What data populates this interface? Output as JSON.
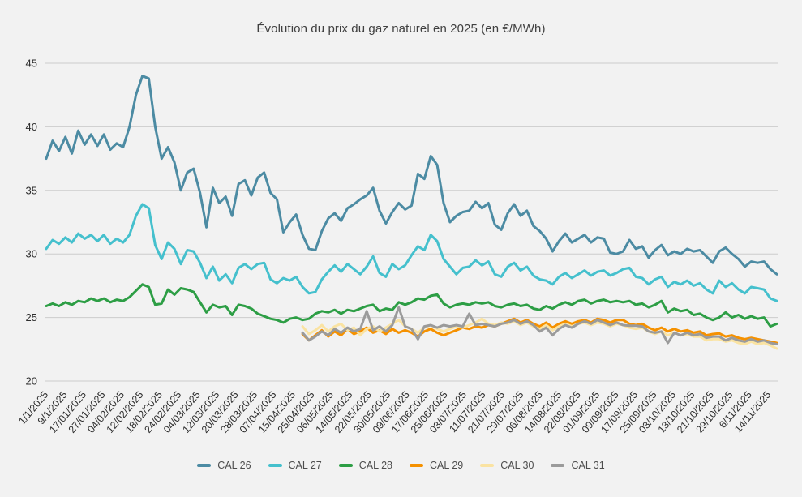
{
  "title": "Évolution du prix du gaz naturel en 2025 (en €/MWh)",
  "colors": {
    "background": "#f2f2f2",
    "grid": "#cccccc",
    "axis_text": "#2e2e2e",
    "title_text": "#404040",
    "cal26": "#4c8ba3",
    "cal27": "#45c0cd",
    "cal28": "#2d9e45",
    "cal29": "#f59100",
    "cal30": "#fae3a2",
    "cal31": "#9b9b9b"
  },
  "chart_data": {
    "type": "line",
    "title": "Évolution du prix du gaz naturel en 2025 (en €/MWh)",
    "xlabel": "",
    "ylabel": "",
    "ylim": [
      20,
      45
    ],
    "y_ticks": [
      20,
      25,
      30,
      35,
      40,
      45
    ],
    "grid": "horizontal",
    "legend_position": "bottom",
    "x_tick_labels": [
      "1/1/2025",
      "9/1/2025",
      "17/01/2025",
      "27/01/2025",
      "04/02/2025",
      "12/02/2025",
      "18/02/2025",
      "24/02/2025",
      "04/03/2025",
      "12/03/2025",
      "20/03/2025",
      "28/03/2025",
      "07/04/2025",
      "15/04/2025",
      "25/04/2025",
      "06/05/2025",
      "14/05/2025",
      "22/05/2025",
      "30/05/2025",
      "09/06/2025",
      "17/06/2025",
      "25/06/2025",
      "03/07/2025",
      "11/07/2025",
      "21/07/2025",
      "29/07/2025",
      "06/08/2025",
      "14/08/2025",
      "22/08/2025",
      "01/09/2025",
      "09/09/2025",
      "17/09/2025",
      "25/09/2025",
      "03/10/2025",
      "13/10/2025",
      "21/10/2025",
      "29/10/2025",
      "6/11/2025",
      "14/11/2025"
    ],
    "series": [
      {
        "name": "CAL 26",
        "color": "#4c8ba3",
        "values": [
          37.5,
          38.9,
          38.1,
          39.2,
          37.9,
          39.7,
          38.6,
          39.4,
          38.5,
          39.4,
          38.2,
          38.7,
          38.4,
          40.0,
          42.5,
          44.0,
          43.8,
          40.0,
          37.5,
          38.4,
          37.2,
          35.0,
          36.4,
          36.7,
          34.8,
          32.1,
          35.2,
          34.0,
          34.5,
          33.0,
          35.5,
          35.8,
          34.6,
          36.0,
          36.4,
          34.8,
          34.3,
          31.7,
          32.5,
          33.1,
          31.5,
          30.4,
          30.3,
          31.8,
          32.8,
          33.2,
          32.6,
          33.6,
          33.9,
          34.3,
          34.6,
          35.2,
          33.4,
          32.4,
          33.3,
          34.0,
          33.5,
          33.8,
          36.3,
          35.9,
          37.7,
          37.0,
          34.0,
          32.5,
          33.0,
          33.3,
          33.4,
          34.1,
          33.6,
          34.0,
          32.3,
          31.9,
          33.2,
          33.9,
          33.0,
          33.4,
          32.2,
          31.8,
          31.2,
          30.2,
          31.0,
          31.6,
          30.9,
          31.2,
          31.5,
          30.9,
          31.3,
          31.2,
          30.1,
          30.0,
          30.2,
          31.1,
          30.4,
          30.6,
          29.7,
          30.3,
          30.7,
          29.9,
          30.2,
          30.0,
          30.4,
          30.2,
          30.3,
          29.8,
          29.3,
          30.2,
          30.5,
          30.0,
          29.6,
          29.0,
          29.4,
          29.3,
          29.4,
          28.8,
          28.4
        ]
      },
      {
        "name": "CAL 27",
        "color": "#45c0cd",
        "values": [
          30.4,
          31.1,
          30.8,
          31.3,
          30.9,
          31.6,
          31.2,
          31.5,
          31.0,
          31.5,
          30.8,
          31.2,
          30.9,
          31.5,
          33.0,
          33.9,
          33.6,
          30.7,
          29.6,
          30.9,
          30.4,
          29.2,
          30.3,
          30.2,
          29.3,
          28.1,
          29.0,
          27.9,
          28.4,
          27.7,
          28.9,
          29.2,
          28.8,
          29.2,
          29.3,
          28.0,
          27.7,
          28.1,
          27.9,
          28.2,
          27.4,
          26.9,
          27.0,
          28.0,
          28.6,
          29.1,
          28.6,
          29.2,
          28.8,
          28.4,
          29.0,
          29.8,
          28.5,
          28.2,
          29.2,
          28.8,
          29.1,
          29.9,
          30.6,
          30.3,
          31.5,
          31.0,
          29.6,
          29.0,
          28.4,
          28.9,
          29.0,
          29.5,
          29.1,
          29.4,
          28.4,
          28.2,
          29.0,
          29.3,
          28.7,
          29.0,
          28.3,
          28.0,
          27.9,
          27.6,
          28.2,
          28.5,
          28.1,
          28.4,
          28.7,
          28.3,
          28.6,
          28.7,
          28.3,
          28.5,
          28.8,
          28.9,
          28.2,
          28.1,
          27.6,
          28.0,
          28.2,
          27.4,
          27.8,
          27.6,
          27.9,
          27.5,
          27.7,
          27.2,
          26.9,
          27.9,
          27.4,
          27.7,
          27.2,
          26.9,
          27.4,
          27.3,
          27.2,
          26.5,
          26.3
        ]
      },
      {
        "name": "CAL 28",
        "color": "#2d9e45",
        "values": [
          25.9,
          26.1,
          25.9,
          26.2,
          26.0,
          26.3,
          26.2,
          26.5,
          26.3,
          26.5,
          26.2,
          26.4,
          26.3,
          26.6,
          27.1,
          27.6,
          27.4,
          26.0,
          26.1,
          27.2,
          26.8,
          27.3,
          27.2,
          27.0,
          26.2,
          25.4,
          26.0,
          25.8,
          25.9,
          25.2,
          26.0,
          25.9,
          25.7,
          25.3,
          25.1,
          24.9,
          24.8,
          24.6,
          24.9,
          25.0,
          24.8,
          24.9,
          25.3,
          25.5,
          25.4,
          25.6,
          25.3,
          25.6,
          25.5,
          25.7,
          25.9,
          26.0,
          25.5,
          25.7,
          25.6,
          26.2,
          26.0,
          26.2,
          26.5,
          26.4,
          26.7,
          26.8,
          26.1,
          25.8,
          26.0,
          26.1,
          26.0,
          26.2,
          26.1,
          26.2,
          25.9,
          25.8,
          26.0,
          26.1,
          25.9,
          26.0,
          25.7,
          25.6,
          25.9,
          25.7,
          26.0,
          26.2,
          26.0,
          26.3,
          26.4,
          26.1,
          26.3,
          26.4,
          26.2,
          26.3,
          26.2,
          26.3,
          26.0,
          26.1,
          25.8,
          26.0,
          26.3,
          25.4,
          25.7,
          25.5,
          25.6,
          25.2,
          25.3,
          25.0,
          24.8,
          25.0,
          25.4,
          25.0,
          25.2,
          24.9,
          25.1,
          24.9,
          25.0,
          24.3,
          24.5
        ]
      },
      {
        "name": "CAL 29",
        "color": "#f59100",
        "values": [
          null,
          null,
          null,
          null,
          null,
          null,
          null,
          null,
          null,
          null,
          null,
          null,
          null,
          null,
          null,
          null,
          null,
          null,
          null,
          null,
          null,
          null,
          null,
          null,
          null,
          null,
          null,
          null,
          null,
          null,
          null,
          null,
          null,
          null,
          null,
          null,
          null,
          null,
          null,
          null,
          23.7,
          23.2,
          23.6,
          24.0,
          23.5,
          23.9,
          23.6,
          24.1,
          23.7,
          23.9,
          24.2,
          23.8,
          24.0,
          23.7,
          24.1,
          23.8,
          24.0,
          23.8,
          23.5,
          23.9,
          24.1,
          23.8,
          23.6,
          23.8,
          24.0,
          24.2,
          24.1,
          24.3,
          24.2,
          24.4,
          24.3,
          24.5,
          24.7,
          24.9,
          24.6,
          24.8,
          24.5,
          24.3,
          24.6,
          24.2,
          24.5,
          24.7,
          24.5,
          24.7,
          24.8,
          24.6,
          24.9,
          24.8,
          24.6,
          24.8,
          24.8,
          24.5,
          24.4,
          24.5,
          24.2,
          24.0,
          24.2,
          23.9,
          24.1,
          23.9,
          24.0,
          23.8,
          23.9,
          23.6,
          23.7,
          23.75,
          23.5,
          23.6,
          23.4,
          23.3,
          23.4,
          23.3,
          23.2,
          23.1,
          23.0
        ]
      },
      {
        "name": "CAL 30",
        "color": "#fae3a2",
        "values": [
          null,
          null,
          null,
          null,
          null,
          null,
          null,
          null,
          null,
          null,
          null,
          null,
          null,
          null,
          null,
          null,
          null,
          null,
          null,
          null,
          null,
          null,
          null,
          null,
          null,
          null,
          null,
          null,
          null,
          null,
          null,
          null,
          null,
          null,
          null,
          null,
          null,
          null,
          null,
          null,
          24.3,
          23.7,
          24.0,
          24.4,
          23.9,
          24.3,
          24.5,
          24.0,
          24.2,
          23.6,
          24.1,
          24.3,
          23.9,
          24.2,
          24.5,
          24.8,
          24.3,
          24.1,
          23.8,
          24.2,
          24.4,
          24.1,
          23.9,
          24.1,
          24.3,
          24.2,
          24.4,
          24.6,
          24.9,
          24.5,
          24.4,
          24.6,
          24.5,
          24.7,
          24.4,
          24.6,
          24.3,
          24.1,
          24.4,
          24.0,
          24.3,
          24.5,
          24.3,
          24.5,
          24.6,
          24.4,
          24.6,
          24.5,
          24.3,
          24.5,
          24.4,
          24.2,
          24.1,
          24.2,
          23.9,
          23.7,
          23.9,
          23.6,
          23.8,
          23.6,
          23.7,
          23.5,
          23.5,
          23.2,
          23.3,
          23.3,
          23.1,
          23.2,
          23.0,
          22.9,
          23.1,
          22.9,
          23.0,
          22.8,
          22.55
        ]
      },
      {
        "name": "CAL 31",
        "color": "#9b9b9b",
        "values": [
          null,
          null,
          null,
          null,
          null,
          null,
          null,
          null,
          null,
          null,
          null,
          null,
          null,
          null,
          null,
          null,
          null,
          null,
          null,
          null,
          null,
          null,
          null,
          null,
          null,
          null,
          null,
          null,
          null,
          null,
          null,
          null,
          null,
          null,
          null,
          null,
          null,
          null,
          null,
          null,
          23.8,
          23.2,
          23.5,
          23.9,
          23.6,
          24.1,
          23.8,
          24.2,
          23.9,
          24.1,
          25.5,
          24.0,
          24.3,
          23.9,
          24.4,
          25.8,
          24.3,
          24.1,
          23.3,
          24.3,
          24.4,
          24.2,
          24.4,
          24.3,
          24.4,
          24.3,
          25.3,
          24.4,
          24.5,
          24.4,
          24.3,
          24.5,
          24.6,
          24.8,
          24.5,
          24.7,
          24.4,
          23.9,
          24.2,
          23.6,
          24.1,
          24.4,
          24.2,
          24.5,
          24.7,
          24.5,
          24.8,
          24.6,
          24.4,
          24.6,
          24.4,
          24.35,
          24.35,
          24.3,
          23.9,
          23.8,
          23.9,
          23.0,
          23.8,
          23.6,
          23.8,
          23.6,
          23.7,
          23.4,
          23.5,
          23.5,
          23.2,
          23.4,
          23.2,
          23.1,
          23.3,
          23.1,
          23.2,
          23.0,
          22.9
        ]
      }
    ]
  }
}
